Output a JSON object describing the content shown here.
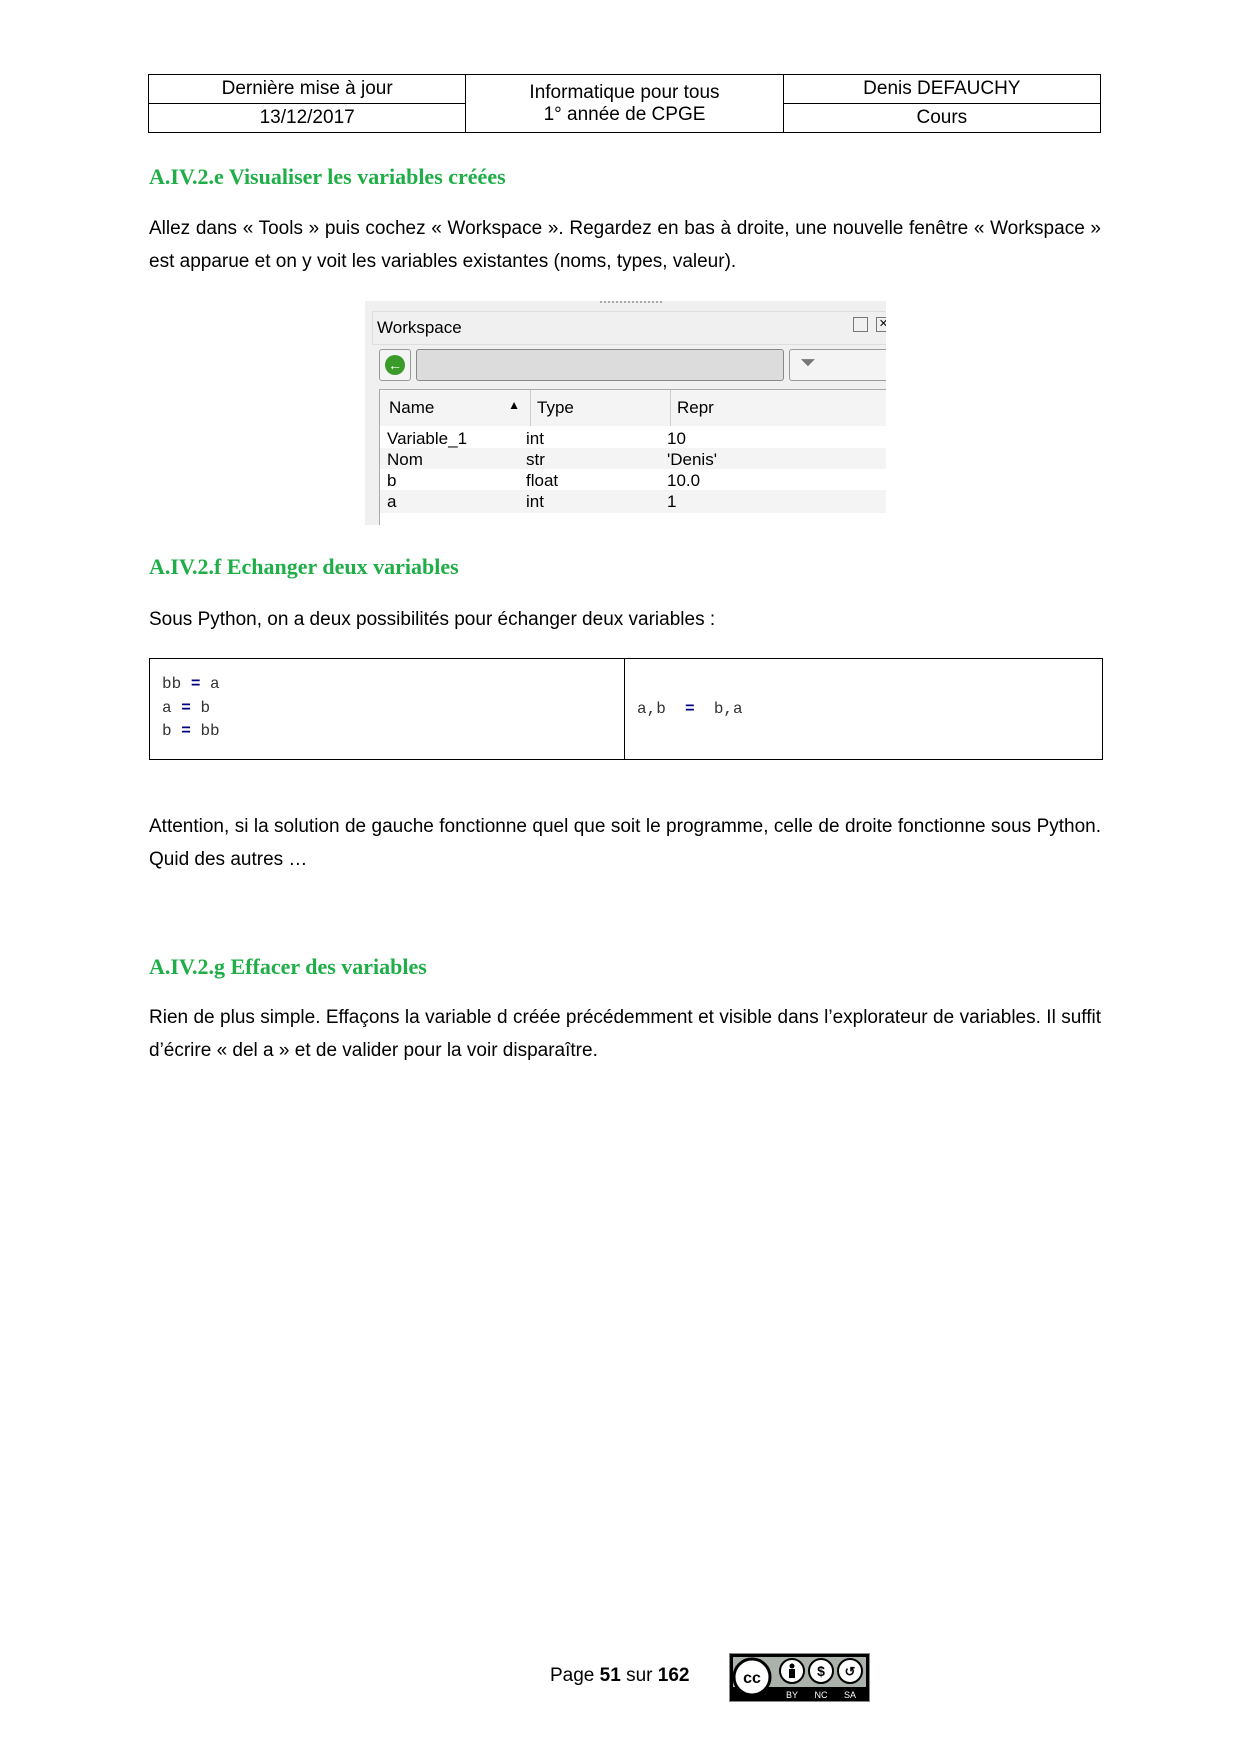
{
  "header": {
    "c1r1": "Dernière mise à jour",
    "c1r2": "13/12/2017",
    "c2r1": "Informatique pour tous",
    "c2r2": "1° année de CPGE",
    "c3r1": "Denis DEFAUCHY",
    "c3r2": "Cours"
  },
  "sections": [
    {
      "title": "A.IV.2.e Visualiser les variables créées",
      "text": "Allez dans « Tools » puis cochez « Workspace ». Regardez en bas à droite, une nouvelle fenêtre « Workspace » est apparue et on y voit les variables existantes (noms, types, valeur)."
    },
    {
      "title": "A.IV.2.f Echanger deux variables",
      "text": "Sous Python, on a deux possibilités pour échanger deux variables :",
      "text2": "Attention, si la solution de gauche fonctionne quel que soit le programme, celle de droite fonctionne sous Python. Quid des autres …"
    },
    {
      "title": "A.IV.2.g Effacer des variables",
      "text": "Rien de plus simple. Effaçons la variable d créée précédemment et visible dans l’explorateur de variables. Il suffit d’écrire « del a » et de valider pour la voir disparaître."
    }
  ],
  "workspace": {
    "title": "Workspace",
    "columns": [
      "Name",
      "Type",
      "Repr"
    ],
    "rows": [
      [
        "Variable_1",
        "int",
        "10"
      ],
      [
        "Nom",
        "str",
        "'Denis'"
      ],
      [
        "b",
        "float",
        "10.0"
      ],
      [
        "a",
        "int",
        "1"
      ]
    ]
  },
  "code": {
    "left": [
      [
        "bb",
        "=",
        "a"
      ],
      [
        "a",
        "=",
        "b"
      ],
      [
        "b",
        "=",
        "bb"
      ]
    ],
    "right": [
      "a,b",
      "=",
      "b,a"
    ]
  },
  "footer": {
    "prefix": "Page ",
    "page": "51",
    "mid": " sur ",
    "total": "162",
    "license": "CC BY NC SA"
  }
}
